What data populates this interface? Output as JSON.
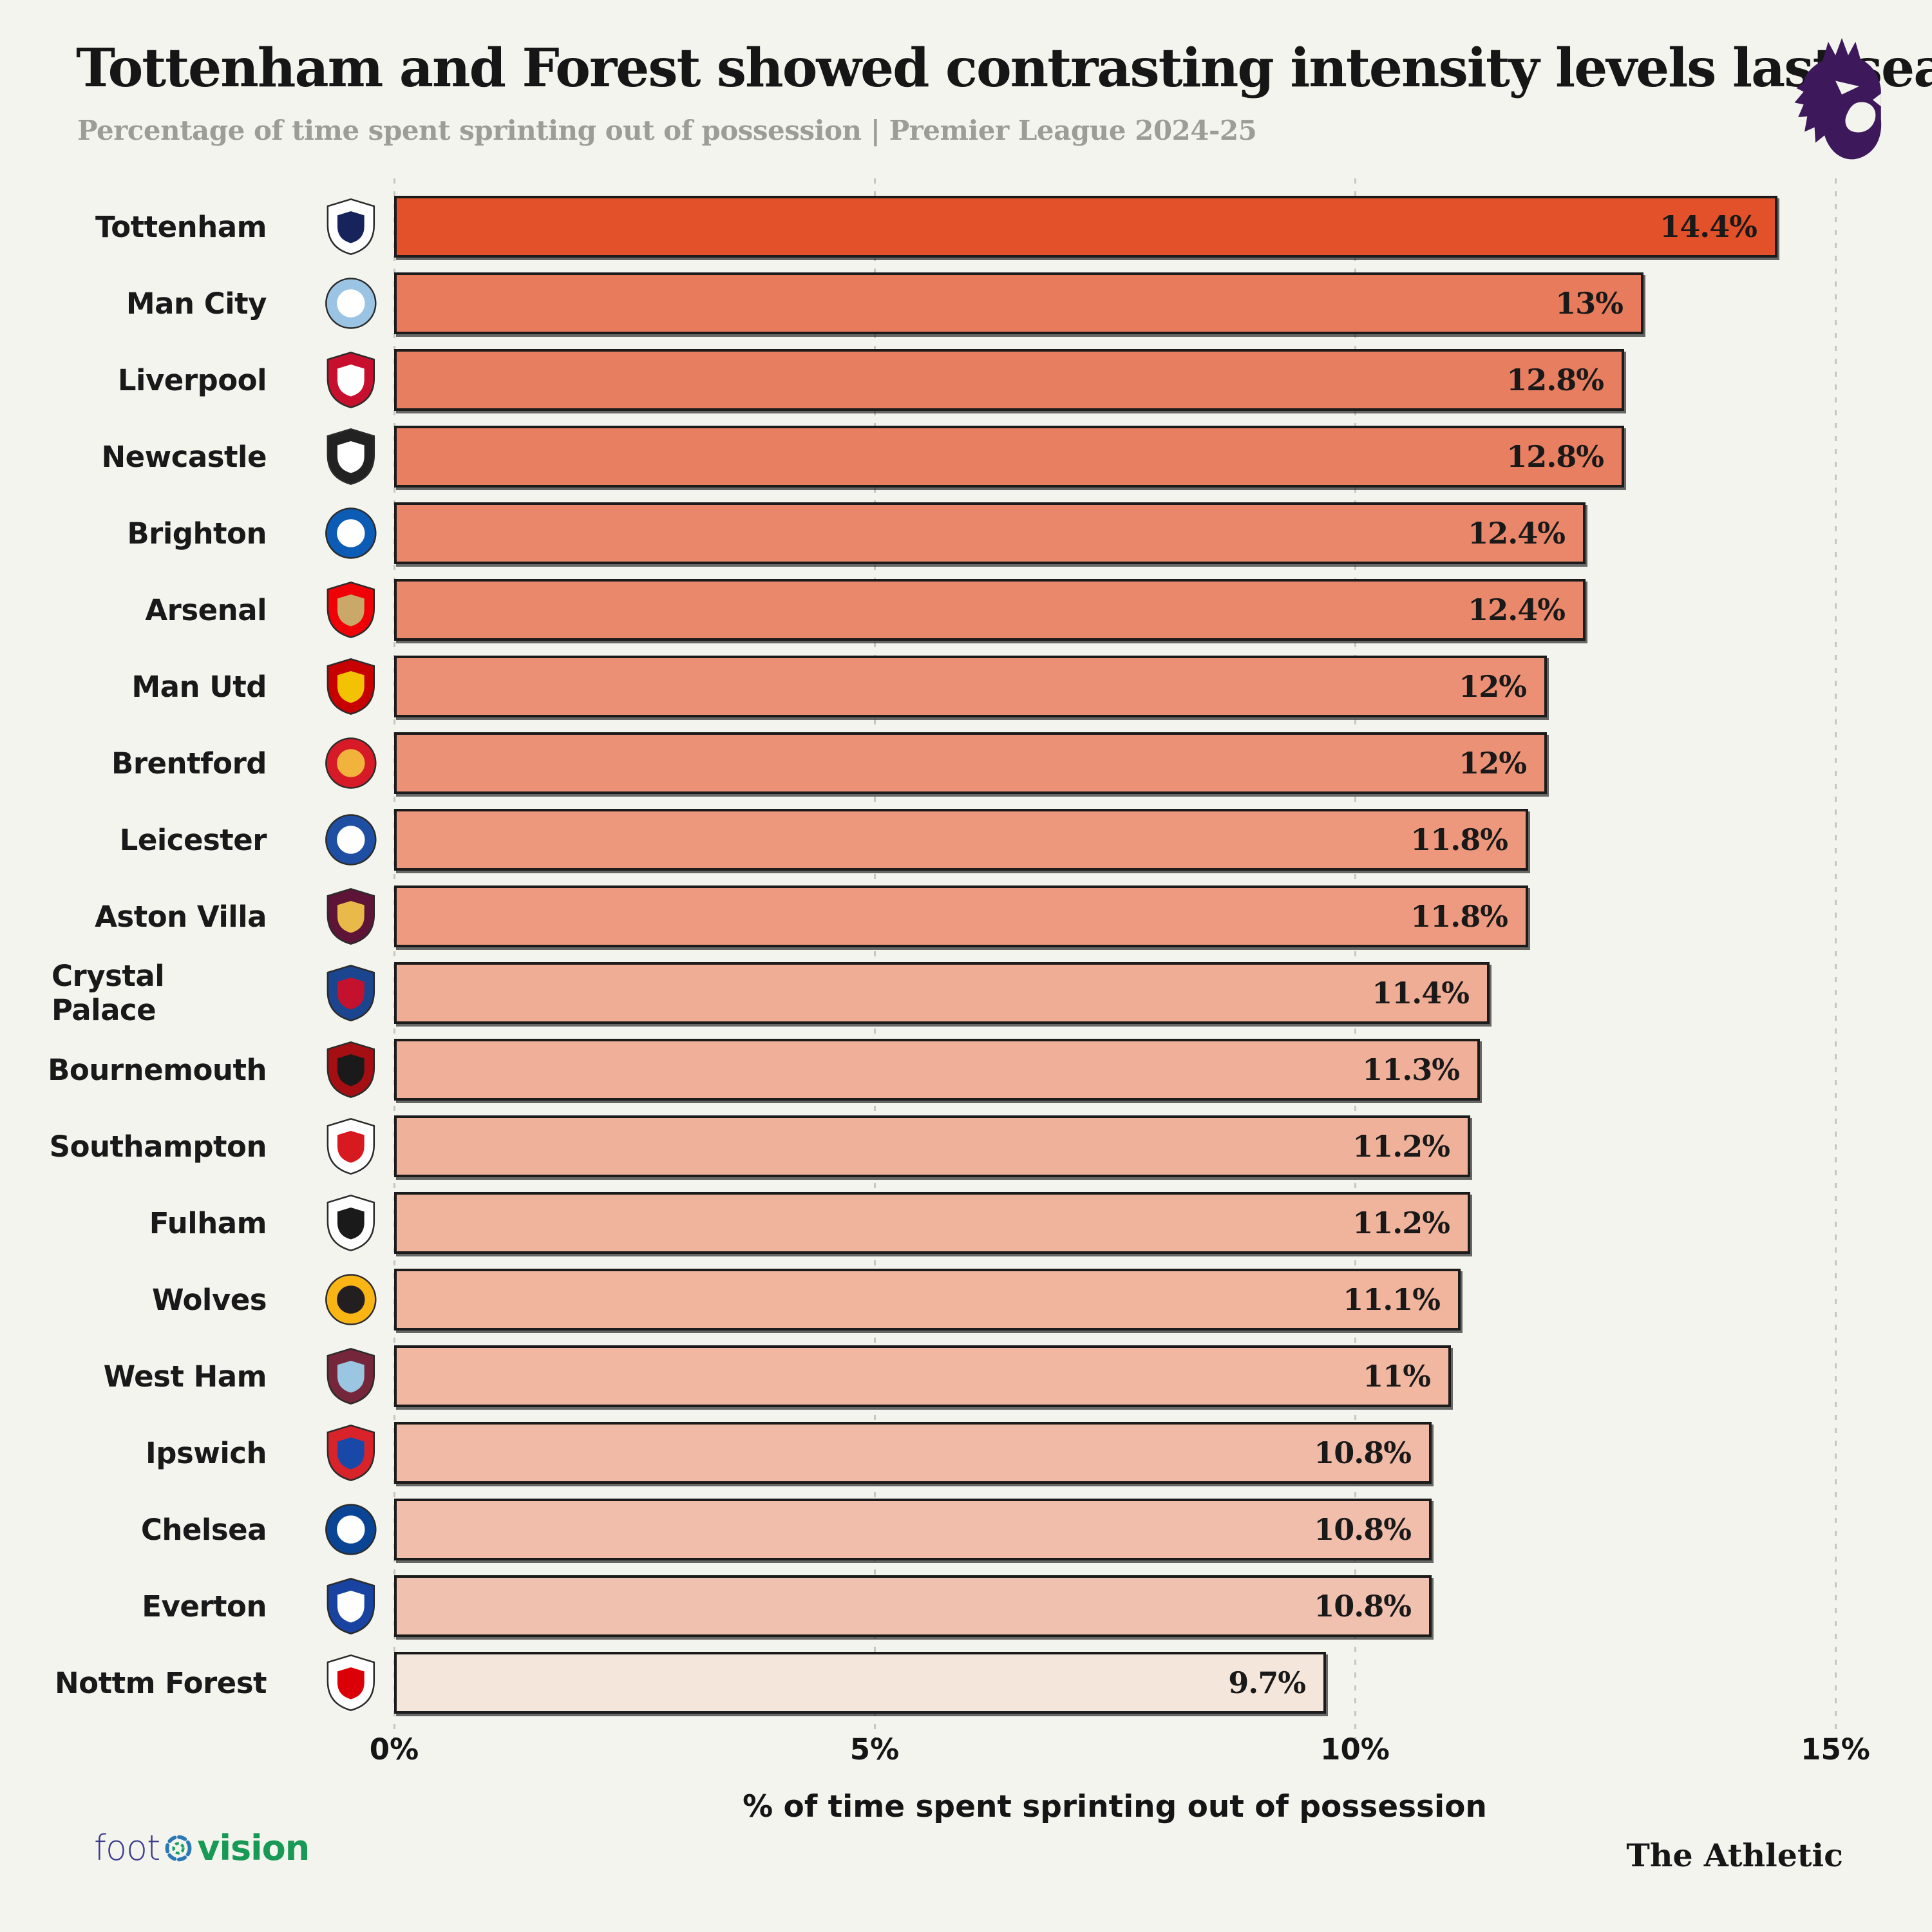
{
  "header": {
    "title": "Tottenham and Forest showed contrasting intensity levels last season",
    "subtitle": "Percentage of time spent sprinting out of possession | Premier League 2024-25",
    "league_logo": "premier-league-lion",
    "league_logo_color": "#3D195B"
  },
  "chart_data": {
    "type": "bar",
    "orientation": "horizontal",
    "title": "Tottenham and Forest showed contrasting intensity levels last season",
    "subtitle": "Percentage of time spent sprinting out of possession | Premier League 2024-25",
    "xlabel": "% of time spent sprinting out of possession",
    "ylabel": "",
    "xlim": [
      0,
      15
    ],
    "grid": "dotted-vertical",
    "x_ticks": [
      "0%",
      "5%",
      "10%",
      "15%"
    ],
    "x_tick_values": [
      0,
      5,
      10,
      15
    ],
    "categories": [
      "Tottenham",
      "Man City",
      "Liverpool",
      "Newcastle",
      "Brighton",
      "Arsenal",
      "Man Utd",
      "Brentford",
      "Leicester",
      "Aston Villa",
      "Crystal Palace",
      "Bournemouth",
      "Southampton",
      "Fulham",
      "Wolves",
      "West Ham",
      "Ipswich",
      "Chelsea",
      "Everton",
      "Nottm Forest"
    ],
    "values": [
      14.4,
      13,
      12.8,
      12.8,
      12.4,
      12.4,
      12,
      12,
      11.8,
      11.8,
      11.4,
      11.3,
      11.2,
      11.2,
      11.1,
      11,
      10.8,
      10.8,
      10.8,
      9.7
    ],
    "value_labels": [
      "14.4%",
      "13%",
      "12.8%",
      "12.8%",
      "12.4%",
      "12.4%",
      "12%",
      "12%",
      "11.8%",
      "11.8%",
      "11.4%",
      "11.3%",
      "11.2%",
      "11.2%",
      "11.1%",
      "11%",
      "10.8%",
      "10.8%",
      "10.8%",
      "9.7%"
    ],
    "bar_border_color": "#1B1B1B",
    "teams": [
      {
        "name": "Tottenham",
        "value": 14.4,
        "label": "14.4%",
        "bar_color": "#E25129",
        "crest": {
          "shape": "shield",
          "primary": "#FFFFFF",
          "secondary": "#17245C"
        }
      },
      {
        "name": "Man City",
        "value": 13,
        "label": "13%",
        "bar_color": "#E87B5C",
        "crest": {
          "shape": "circle",
          "primary": "#9BC4E4",
          "secondary": "#FFFFFF"
        }
      },
      {
        "name": "Liverpool",
        "value": 12.8,
        "label": "12.8%",
        "bar_color": "#E87E60",
        "crest": {
          "shape": "shield",
          "primary": "#C8102E",
          "secondary": "#FFFFFF"
        }
      },
      {
        "name": "Newcastle",
        "value": 12.8,
        "label": "12.8%",
        "bar_color": "#E87F61",
        "crest": {
          "shape": "shield",
          "primary": "#222222",
          "secondary": "#FFFFFF"
        }
      },
      {
        "name": "Brighton",
        "value": 12.4,
        "label": "12.4%",
        "bar_color": "#EA876A",
        "crest": {
          "shape": "circle",
          "primary": "#0C5BB5",
          "secondary": "#FFFFFF"
        }
      },
      {
        "name": "Arsenal",
        "value": 12.4,
        "label": "12.4%",
        "bar_color": "#EA886B",
        "crest": {
          "shape": "shield",
          "primary": "#EF0107",
          "secondary": "#C9A86A"
        }
      },
      {
        "name": "Man Utd",
        "value": 12,
        "label": "12%",
        "bar_color": "#EB9074",
        "crest": {
          "shape": "shield",
          "primary": "#C70101",
          "secondary": "#F3C202"
        }
      },
      {
        "name": "Brentford",
        "value": 12,
        "label": "12%",
        "bar_color": "#EB9176",
        "crest": {
          "shape": "circle",
          "primary": "#D71A28",
          "secondary": "#F2B33D"
        }
      },
      {
        "name": "Leicester",
        "value": 11.8,
        "label": "11.8%",
        "bar_color": "#ED987D",
        "crest": {
          "shape": "circle",
          "primary": "#1E4FA3",
          "secondary": "#FFFFFF"
        }
      },
      {
        "name": "Aston Villa",
        "value": 11.8,
        "label": "11.8%",
        "bar_color": "#ED9A80",
        "crest": {
          "shape": "shield",
          "primary": "#5E1436",
          "secondary": "#E9B949"
        }
      },
      {
        "name": "Crystal Palace",
        "value": 11.4,
        "label": "11.4%",
        "bar_color": "#F0AD96",
        "crest": {
          "shape": "shield",
          "primary": "#1B458F",
          "secondary": "#C4122E"
        }
      },
      {
        "name": "Bournemouth",
        "value": 11.3,
        "label": "11.3%",
        "bar_color": "#F0AF98",
        "crest": {
          "shape": "shield",
          "primary": "#A50F14",
          "secondary": "#1A1A1A"
        }
      },
      {
        "name": "Southampton",
        "value": 11.2,
        "label": "11.2%",
        "bar_color": "#F0B19A",
        "crest": {
          "shape": "shield",
          "primary": "#FFFFFF",
          "secondary": "#D71920"
        }
      },
      {
        "name": "Fulham",
        "value": 11.2,
        "label": "11.2%",
        "bar_color": "#F0B39C",
        "crest": {
          "shape": "shield",
          "primary": "#FFFFFF",
          "secondary": "#1A1A1A"
        }
      },
      {
        "name": "Wolves",
        "value": 11.1,
        "label": "11.1%",
        "bar_color": "#F1B59E",
        "crest": {
          "shape": "circle",
          "primary": "#F9B514",
          "secondary": "#231F20"
        }
      },
      {
        "name": "West Ham",
        "value": 11,
        "label": "11%",
        "bar_color": "#F1B7A1",
        "crest": {
          "shape": "shield",
          "primary": "#76263B",
          "secondary": "#9AC6E2"
        }
      },
      {
        "name": "Ipswich",
        "value": 10.8,
        "label": "10.8%",
        "bar_color": "#F1BAA6",
        "crest": {
          "shape": "shield",
          "primary": "#D8232A",
          "secondary": "#1849A9"
        }
      },
      {
        "name": "Chelsea",
        "value": 10.8,
        "label": "10.8%",
        "bar_color": "#F1BEAC",
        "crest": {
          "shape": "circle",
          "primary": "#0A4595",
          "secondary": "#FFFFFF"
        }
      },
      {
        "name": "Everton",
        "value": 10.8,
        "label": "10.8%",
        "bar_color": "#F1C1B0",
        "crest": {
          "shape": "shield",
          "primary": "#1943A0",
          "secondary": "#FFFFFF"
        }
      },
      {
        "name": "Nottm Forest",
        "value": 9.7,
        "label": "9.7%",
        "bar_color": "#F4E6DB",
        "crest": {
          "shape": "shield",
          "primary": "#FFFFFF",
          "secondary": "#DB0007"
        }
      }
    ]
  },
  "footer": {
    "left_logo_part1": "foot",
    "left_logo_part2": "vision",
    "left_logo_icon": "dashed-circle-o-icon",
    "right_brand": "The Athletic"
  },
  "style": {
    "background": "#F4F4EE",
    "gridline_color": "#C7C7C0",
    "text_color": "#171717",
    "subtitle_color": "#9D9D98"
  }
}
